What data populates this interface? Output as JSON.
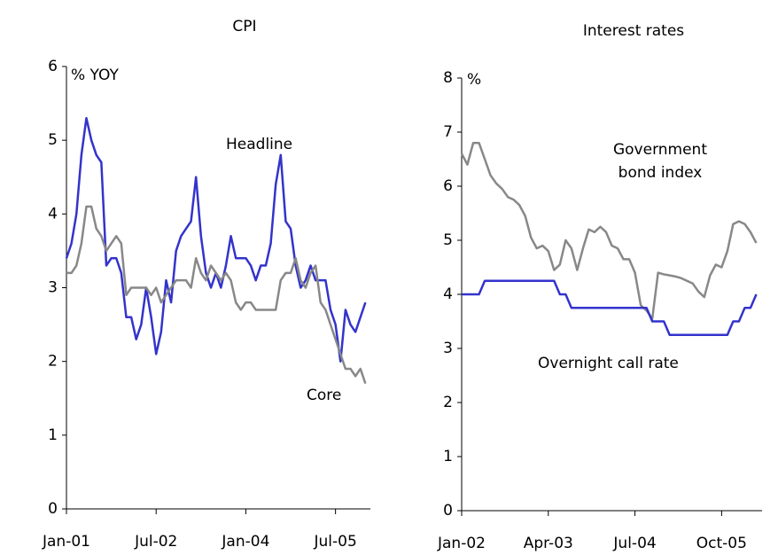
{
  "chart_data": [
    {
      "type": "line",
      "title": "CPI",
      "y_label": "% YOY",
      "categories": [
        "Jan-01",
        null,
        null,
        null,
        null,
        null,
        null,
        null,
        null,
        null,
        null,
        null,
        null,
        null,
        null,
        null,
        null,
        null,
        "Jul-02",
        null,
        null,
        null,
        null,
        null,
        null,
        null,
        null,
        null,
        null,
        null,
        null,
        null,
        null,
        null,
        null,
        null,
        "Jan-04",
        null,
        null,
        null,
        null,
        null,
        null,
        null,
        null,
        null,
        null,
        null,
        null,
        null,
        null,
        null,
        null,
        null,
        "Jul-05",
        null,
        null,
        null,
        null,
        null,
        null
      ],
      "series": [
        {
          "name": "Headline",
          "color": "#3333cc",
          "values": [
            3.4,
            3.6,
            4.0,
            4.8,
            5.3,
            5.0,
            4.8,
            4.7,
            3.3,
            3.4,
            3.4,
            3.2,
            2.6,
            2.6,
            2.3,
            2.5,
            3.0,
            2.6,
            2.1,
            2.4,
            3.1,
            2.8,
            3.5,
            3.7,
            3.8,
            3.9,
            4.5,
            3.7,
            3.2,
            3.0,
            3.2,
            3.0,
            3.3,
            3.7,
            3.4,
            3.4,
            3.4,
            3.3,
            3.1,
            3.3,
            3.3,
            3.6,
            4.4,
            4.8,
            3.9,
            3.8,
            3.3,
            3.0,
            3.1,
            3.3,
            3.1,
            3.1,
            3.1,
            2.7,
            2.5,
            2.0,
            2.7,
            2.5,
            2.4,
            2.6,
            2.8
          ]
        },
        {
          "name": "Core",
          "color": "#888888",
          "values": [
            3.2,
            3.2,
            3.3,
            3.6,
            4.1,
            4.1,
            3.8,
            3.7,
            3.5,
            3.6,
            3.7,
            3.6,
            2.9,
            3.0,
            3.0,
            3.0,
            3.0,
            2.9,
            3.0,
            2.8,
            2.9,
            3.0,
            3.1,
            3.1,
            3.1,
            3.0,
            3.4,
            3.2,
            3.1,
            3.3,
            3.2,
            3.1,
            3.2,
            3.1,
            2.8,
            2.7,
            2.8,
            2.8,
            2.7,
            2.7,
            2.7,
            2.7,
            2.7,
            3.1,
            3.2,
            3.2,
            3.4,
            3.1,
            3.0,
            3.2,
            3.3,
            2.8,
            2.7,
            2.5,
            2.3,
            2.1,
            1.9,
            1.9,
            1.8,
            1.9,
            1.7
          ]
        }
      ],
      "ylim": [
        0,
        6
      ],
      "yticks": [
        0,
        1,
        2,
        3,
        4,
        5,
        6
      ]
    },
    {
      "type": "line",
      "title": "Interest rates",
      "y_label": "%",
      "categories": [
        "Jan-02",
        null,
        null,
        null,
        null,
        null,
        null,
        null,
        null,
        null,
        null,
        null,
        null,
        null,
        null,
        "Apr-03",
        null,
        null,
        null,
        null,
        null,
        null,
        null,
        null,
        null,
        null,
        null,
        null,
        null,
        null,
        "Jul-04",
        null,
        null,
        null,
        null,
        null,
        null,
        null,
        null,
        null,
        null,
        null,
        null,
        null,
        null,
        "Oct-05",
        null,
        null,
        null,
        null,
        null,
        null
      ],
      "series": [
        {
          "name": "Government bond index",
          "color": "#888888",
          "values": [
            6.6,
            6.4,
            6.8,
            6.8,
            6.5,
            6.2,
            6.05,
            5.95,
            5.8,
            5.75,
            5.65,
            5.45,
            5.05,
            4.85,
            4.9,
            4.8,
            4.45,
            4.55,
            5.0,
            4.85,
            4.45,
            4.85,
            5.2,
            5.15,
            5.25,
            5.15,
            4.9,
            4.85,
            4.65,
            4.65,
            4.4,
            3.8,
            3.7,
            3.55,
            4.4,
            4.37,
            4.35,
            4.33,
            4.3,
            4.25,
            4.2,
            4.05,
            3.95,
            4.35,
            4.55,
            4.5,
            4.8,
            5.3,
            5.35,
            5.3,
            5.15,
            4.95
          ]
        },
        {
          "name": "Overnight call rate",
          "color": "#3333cc",
          "values": [
            4.0,
            4.0,
            4.0,
            4.0,
            4.25,
            4.25,
            4.25,
            4.25,
            4.25,
            4.25,
            4.25,
            4.25,
            4.25,
            4.25,
            4.25,
            4.25,
            4.25,
            4.0,
            4.0,
            3.75,
            3.75,
            3.75,
            3.75,
            3.75,
            3.75,
            3.75,
            3.75,
            3.75,
            3.75,
            3.75,
            3.75,
            3.75,
            3.75,
            3.5,
            3.5,
            3.5,
            3.25,
            3.25,
            3.25,
            3.25,
            3.25,
            3.25,
            3.25,
            3.25,
            3.25,
            3.25,
            3.25,
            3.5,
            3.5,
            3.75,
            3.75,
            4.0
          ]
        }
      ],
      "ylim": [
        0,
        8
      ],
      "yticks": [
        0,
        1,
        2,
        3,
        4,
        5,
        6,
        7,
        8
      ]
    }
  ]
}
